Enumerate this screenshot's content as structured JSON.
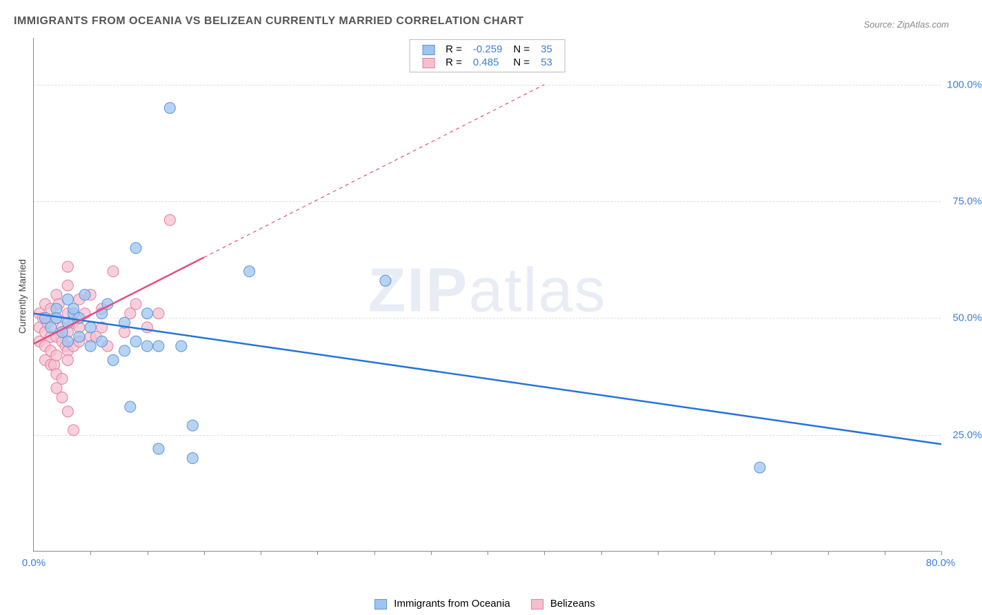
{
  "chart": {
    "title": "IMMIGRANTS FROM OCEANIA VS BELIZEAN CURRENTLY MARRIED CORRELATION CHART",
    "source": "Source: ZipAtlas.com",
    "type": "scatter-with-regression",
    "background_color": "#ffffff",
    "grid_color": "#dddddd",
    "axis_color": "#888888",
    "x_axis": {
      "min": 0,
      "max": 80,
      "label_min": "0.0%",
      "label_max": "80.0%",
      "label_color": "#3b7dd8",
      "tick_step_minor": 5
    },
    "y_axis": {
      "label": "Currently Married",
      "min": 0,
      "max": 110,
      "ticks": [
        25,
        50,
        75,
        100
      ],
      "tick_labels": [
        "25.0%",
        "50.0%",
        "75.0%",
        "100.0%"
      ],
      "label_color": "#3b7dd8"
    },
    "watermark": {
      "text_a": "ZIP",
      "text_b": "atlas",
      "color": "rgba(120,150,200,0.18)",
      "fontsize": 90
    },
    "series": [
      {
        "name": "Immigrants from Oceania",
        "marker_color": "#9fc4f0",
        "marker_border": "#5a93d6",
        "marker_radius": 8,
        "marker_opacity": 0.75,
        "line_color": "#2373d9",
        "line_width": 2.5,
        "r_value": "-0.259",
        "n_value": "35",
        "regression": {
          "x1": 0,
          "y1": 51,
          "x2": 80,
          "y2": 23
        },
        "points": [
          {
            "x": 1,
            "y": 50
          },
          {
            "x": 1.5,
            "y": 48
          },
          {
            "x": 2,
            "y": 52
          },
          {
            "x": 2,
            "y": 50
          },
          {
            "x": 2.5,
            "y": 47
          },
          {
            "x": 3,
            "y": 54
          },
          {
            "x": 3,
            "y": 49
          },
          {
            "x": 3,
            "y": 45
          },
          {
            "x": 3.5,
            "y": 51
          },
          {
            "x": 3.5,
            "y": 52
          },
          {
            "x": 4,
            "y": 50
          },
          {
            "x": 4,
            "y": 46
          },
          {
            "x": 4.5,
            "y": 55
          },
          {
            "x": 5,
            "y": 48
          },
          {
            "x": 5,
            "y": 44
          },
          {
            "x": 6,
            "y": 51
          },
          {
            "x": 6,
            "y": 45
          },
          {
            "x": 6.5,
            "y": 53
          },
          {
            "x": 7,
            "y": 41
          },
          {
            "x": 8,
            "y": 49
          },
          {
            "x": 8,
            "y": 43
          },
          {
            "x": 8.5,
            "y": 31
          },
          {
            "x": 9,
            "y": 65
          },
          {
            "x": 9,
            "y": 45
          },
          {
            "x": 10,
            "y": 44
          },
          {
            "x": 10,
            "y": 51
          },
          {
            "x": 11,
            "y": 44
          },
          {
            "x": 11,
            "y": 22
          },
          {
            "x": 12,
            "y": 95
          },
          {
            "x": 13,
            "y": 44
          },
          {
            "x": 14,
            "y": 27
          },
          {
            "x": 14,
            "y": 20
          },
          {
            "x": 19,
            "y": 60
          },
          {
            "x": 31,
            "y": 58
          },
          {
            "x": 64,
            "y": 18
          }
        ]
      },
      {
        "name": "Belizeans",
        "marker_color": "#f4c0cf",
        "marker_border": "#e37ca0",
        "marker_radius": 8,
        "marker_opacity": 0.75,
        "line_color": "#e8497e",
        "line_width": 2.5,
        "r_value": "0.485",
        "n_value": "53",
        "regression_solid": {
          "x1": 0,
          "y1": 44.5,
          "x2": 15,
          "y2": 63
        },
        "regression_dashed": {
          "x1": 15,
          "y1": 63,
          "x2": 45,
          "y2": 100
        },
        "points": [
          {
            "x": 0.5,
            "y": 51
          },
          {
            "x": 0.5,
            "y": 48
          },
          {
            "x": 0.5,
            "y": 45
          },
          {
            "x": 0.8,
            "y": 50
          },
          {
            "x": 1,
            "y": 53
          },
          {
            "x": 1,
            "y": 47
          },
          {
            "x": 1,
            "y": 44
          },
          {
            "x": 1,
            "y": 41
          },
          {
            "x": 1.2,
            "y": 49
          },
          {
            "x": 1.5,
            "y": 52
          },
          {
            "x": 1.5,
            "y": 46
          },
          {
            "x": 1.5,
            "y": 43
          },
          {
            "x": 1.5,
            "y": 40
          },
          {
            "x": 1.8,
            "y": 40
          },
          {
            "x": 2,
            "y": 55
          },
          {
            "x": 2,
            "y": 50
          },
          {
            "x": 2,
            "y": 46
          },
          {
            "x": 2,
            "y": 42
          },
          {
            "x": 2,
            "y": 38
          },
          {
            "x": 2,
            "y": 35
          },
          {
            "x": 2.2,
            "y": 53
          },
          {
            "x": 2.5,
            "y": 48
          },
          {
            "x": 2.5,
            "y": 45
          },
          {
            "x": 2.5,
            "y": 37
          },
          {
            "x": 2.5,
            "y": 33
          },
          {
            "x": 2.8,
            "y": 44
          },
          {
            "x": 3,
            "y": 61
          },
          {
            "x": 3,
            "y": 57
          },
          {
            "x": 3,
            "y": 51
          },
          {
            "x": 3,
            "y": 47
          },
          {
            "x": 3,
            "y": 43
          },
          {
            "x": 3,
            "y": 41
          },
          {
            "x": 3,
            "y": 30
          },
          {
            "x": 3.5,
            "y": 49
          },
          {
            "x": 3.5,
            "y": 44
          },
          {
            "x": 3.5,
            "y": 26
          },
          {
            "x": 4,
            "y": 54
          },
          {
            "x": 4,
            "y": 48
          },
          {
            "x": 4,
            "y": 45
          },
          {
            "x": 4.5,
            "y": 51
          },
          {
            "x": 5,
            "y": 55
          },
          {
            "x": 5,
            "y": 46
          },
          {
            "x": 5.5,
            "y": 46
          },
          {
            "x": 6,
            "y": 52
          },
          {
            "x": 6,
            "y": 48
          },
          {
            "x": 6.5,
            "y": 44
          },
          {
            "x": 7,
            "y": 60
          },
          {
            "x": 8,
            "y": 47
          },
          {
            "x": 8.5,
            "y": 51
          },
          {
            "x": 9,
            "y": 53
          },
          {
            "x": 10,
            "y": 48
          },
          {
            "x": 11,
            "y": 51
          },
          {
            "x": 12,
            "y": 71
          }
        ]
      }
    ],
    "legend_bottom": [
      {
        "label": "Immigrants from Oceania",
        "fill": "#9fc4f0",
        "border": "#5a93d6"
      },
      {
        "label": "Belizeans",
        "fill": "#f4c0cf",
        "border": "#e37ca0"
      }
    ]
  }
}
